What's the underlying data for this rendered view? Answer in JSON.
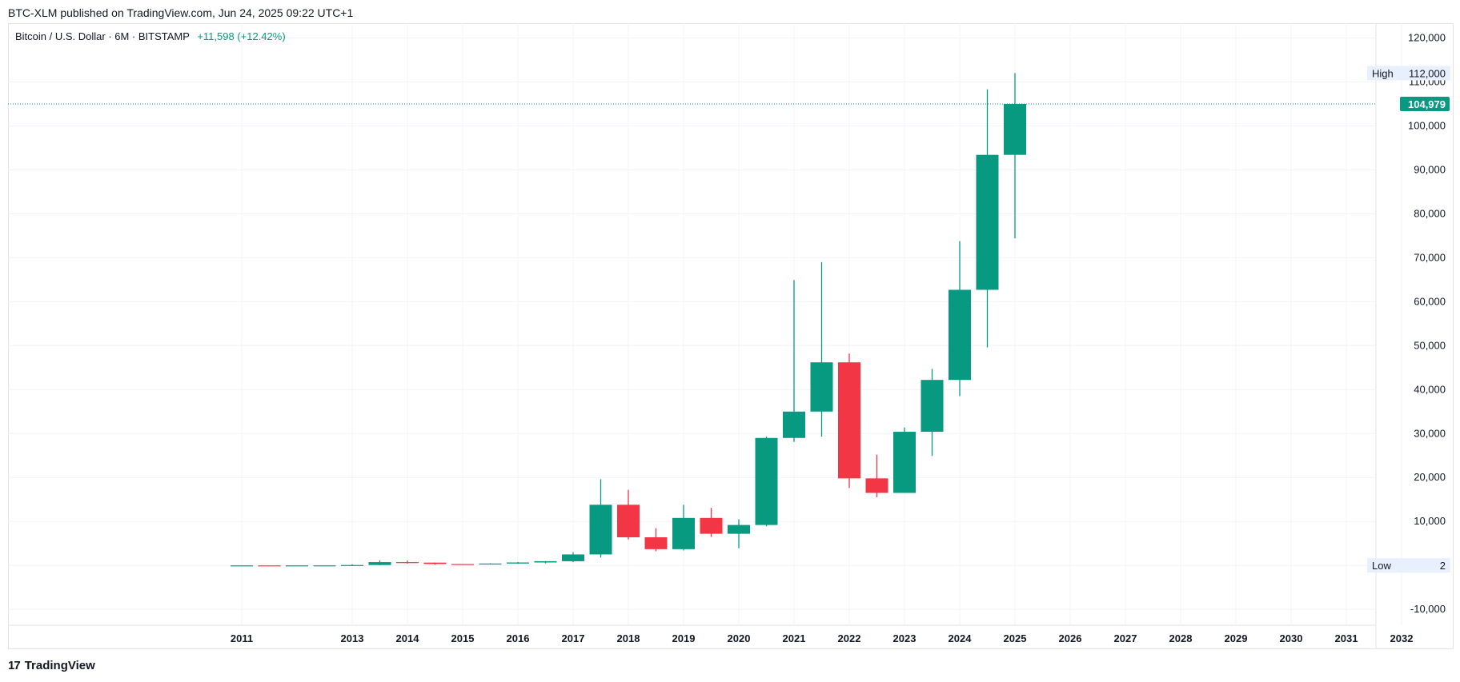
{
  "header": {
    "published": "BTC-XLM published on TradingView.com, Jun 24, 2025 09:22 UTC+1"
  },
  "legend": {
    "symbol": "Bitcoin / U.S. Dollar · 6M · BITSTAMP",
    "change": "+11,598 (+12.42%)"
  },
  "footer": {
    "logo_mark": "17",
    "brand": "TradingView"
  },
  "colors": {
    "up": "#089981",
    "down": "#f23645",
    "grid": "#f0f3fa",
    "price_line": "#089981"
  },
  "chart_data": {
    "type": "candlestick",
    "title": "Bitcoin / U.S. Dollar · 6M · BITSTAMP",
    "ylim": [
      -13000,
      124000
    ],
    "y_ticks": [
      -10000,
      10000,
      20000,
      30000,
      40000,
      50000,
      60000,
      70000,
      80000,
      90000,
      100000,
      110000,
      120000
    ],
    "y_tick_labels": [
      "-10,000",
      "10,000",
      "20,000",
      "30,000",
      "40,000",
      "50,000",
      "60,000",
      "70,000",
      "80,000",
      "90,000",
      "100,000",
      "110,000",
      "120,000"
    ],
    "x_ticks": [
      {
        "label": "2011",
        "t": 2011.0
      },
      {
        "label": "2013",
        "t": 2013.0
      },
      {
        "label": "2014",
        "t": 2014.0
      },
      {
        "label": "2015",
        "t": 2015.0
      },
      {
        "label": "2016",
        "t": 2016.0
      },
      {
        "label": "2017",
        "t": 2017.0
      },
      {
        "label": "2018",
        "t": 2018.0
      },
      {
        "label": "2019",
        "t": 2019.0
      },
      {
        "label": "2020",
        "t": 2020.0
      },
      {
        "label": "2021",
        "t": 2021.0
      },
      {
        "label": "2022",
        "t": 2022.0
      },
      {
        "label": "2023",
        "t": 2023.0
      },
      {
        "label": "2024",
        "t": 2024.0
      },
      {
        "label": "2025",
        "t": 2025.0
      },
      {
        "label": "2026",
        "t": 2026.0
      },
      {
        "label": "2027",
        "t": 2027.0
      },
      {
        "label": "2028",
        "t": 2028.0
      },
      {
        "label": "2029",
        "t": 2029.0
      },
      {
        "label": "2030",
        "t": 2030.0
      },
      {
        "label": "2031",
        "t": 2031.0
      },
      {
        "label": "2032",
        "t": 2032.0
      }
    ],
    "candles": [
      {
        "t": 2011.0,
        "o": 2,
        "h": 30,
        "l": 2,
        "c": 5
      },
      {
        "t": 2011.5,
        "o": 5,
        "h": 15,
        "l": 2,
        "c": 4
      },
      {
        "t": 2012.0,
        "o": 4,
        "h": 7,
        "l": 4,
        "c": 7
      },
      {
        "t": 2012.5,
        "o": 7,
        "h": 15,
        "l": 7,
        "c": 13
      },
      {
        "t": 2013.0,
        "o": 13,
        "h": 266,
        "l": 13,
        "c": 90
      },
      {
        "t": 2013.5,
        "o": 90,
        "h": 1160,
        "l": 65,
        "c": 750
      },
      {
        "t": 2014.0,
        "o": 750,
        "h": 1100,
        "l": 430,
        "c": 640
      },
      {
        "t": 2014.5,
        "o": 640,
        "h": 650,
        "l": 150,
        "c": 320
      },
      {
        "t": 2015.0,
        "o": 320,
        "h": 320,
        "l": 160,
        "c": 265
      },
      {
        "t": 2015.5,
        "o": 265,
        "h": 500,
        "l": 200,
        "c": 430
      },
      {
        "t": 2016.0,
        "o": 430,
        "h": 780,
        "l": 360,
        "c": 670
      },
      {
        "t": 2016.5,
        "o": 670,
        "h": 980,
        "l": 470,
        "c": 960
      },
      {
        "t": 2017.0,
        "o": 960,
        "h": 3000,
        "l": 750,
        "c": 2500
      },
      {
        "t": 2017.5,
        "o": 2500,
        "h": 19600,
        "l": 1800,
        "c": 13800
      },
      {
        "t": 2018.0,
        "o": 13800,
        "h": 17200,
        "l": 5900,
        "c": 6400
      },
      {
        "t": 2018.5,
        "o": 6400,
        "h": 8500,
        "l": 3200,
        "c": 3700
      },
      {
        "t": 2019.0,
        "o": 3700,
        "h": 13800,
        "l": 3400,
        "c": 10800
      },
      {
        "t": 2019.5,
        "o": 10800,
        "h": 13100,
        "l": 6500,
        "c": 7200
      },
      {
        "t": 2020.0,
        "o": 7200,
        "h": 10500,
        "l": 3900,
        "c": 9200
      },
      {
        "t": 2020.5,
        "o": 9200,
        "h": 29300,
        "l": 8900,
        "c": 29000
      },
      {
        "t": 2021.0,
        "o": 29000,
        "h": 64900,
        "l": 28100,
        "c": 35000
      },
      {
        "t": 2021.5,
        "o": 35000,
        "h": 69000,
        "l": 29300,
        "c": 46200
      },
      {
        "t": 2022.0,
        "o": 46200,
        "h": 48200,
        "l": 17600,
        "c": 19800
      },
      {
        "t": 2022.5,
        "o": 19800,
        "h": 25200,
        "l": 15500,
        "c": 16500
      },
      {
        "t": 2023.0,
        "o": 16500,
        "h": 31400,
        "l": 16500,
        "c": 30400
      },
      {
        "t": 2023.5,
        "o": 30400,
        "h": 44700,
        "l": 24900,
        "c": 42200
      },
      {
        "t": 2024.0,
        "o": 42200,
        "h": 73800,
        "l": 38500,
        "c": 62700
      },
      {
        "t": 2024.5,
        "o": 62700,
        "h": 108300,
        "l": 49600,
        "c": 93400
      },
      {
        "t": 2025.0,
        "o": 93400,
        "h": 112000,
        "l": 74400,
        "c": 104979
      }
    ],
    "high_marker": {
      "label": "High",
      "value": 112000,
      "value_label": "112,000"
    },
    "low_marker": {
      "label": "Low",
      "value": 2,
      "value_label": "2"
    },
    "last_price": {
      "value": 104979,
      "label": "104,979"
    }
  }
}
